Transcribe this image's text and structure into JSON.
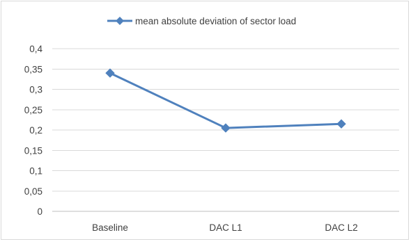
{
  "chart_data": {
    "type": "line",
    "categories": [
      "Baseline",
      "DAC L1",
      "DAC L2"
    ],
    "series": [
      {
        "name": "mean absolute deviation of sector load",
        "values": [
          0.34,
          0.205,
          0.215
        ],
        "color": "#4f81bd",
        "marker": "diamond"
      }
    ],
    "ylim": [
      0,
      0.4
    ],
    "yticks": [
      0,
      0.05,
      0.1,
      0.15,
      0.2,
      0.25,
      0.3,
      0.35,
      0.4
    ],
    "ytick_labels": [
      "0",
      "0,05",
      "0,1",
      "0,15",
      "0,2",
      "0,25",
      "0,3",
      "0,35",
      "0,4"
    ],
    "grid": true,
    "legend_position": "top-center",
    "title": "",
    "xlabel": "",
    "ylabel": ""
  }
}
